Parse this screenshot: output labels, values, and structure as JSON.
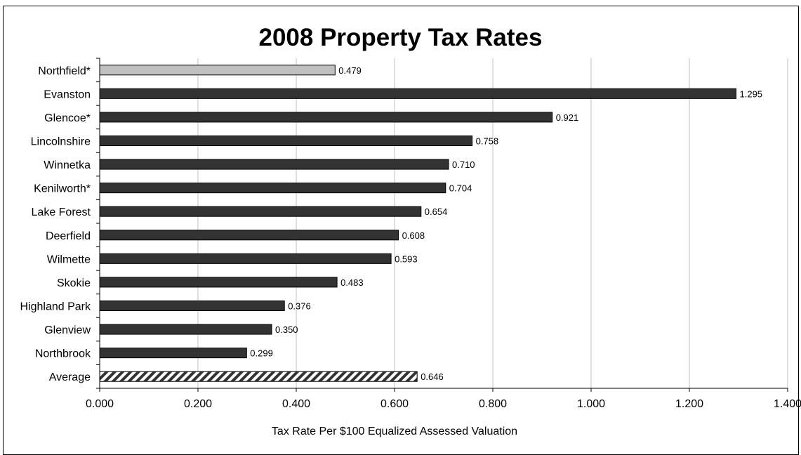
{
  "chart_data": {
    "type": "bar",
    "orientation": "horizontal",
    "title": "2008 Property Tax Rates",
    "xlabel": "Tax Rate Per $100 Equalized Assessed Valuation",
    "ylabel": "",
    "xlim": [
      0,
      1.4
    ],
    "x_ticks": [
      "0.000",
      "0.200",
      "0.400",
      "0.600",
      "0.800",
      "1.000",
      "1.200",
      "1.400"
    ],
    "grid": "vertical",
    "legend": "none",
    "categories": [
      "Northfield*",
      "Evanston",
      "Glencoe*",
      "Lincolnshire",
      "Winnetka",
      "Kenilworth*",
      "Lake Forest",
      "Deerfield",
      "Wilmette",
      "Skokie",
      "Highland Park",
      "Glenview",
      "Northbrook",
      "Average"
    ],
    "values": [
      0.479,
      1.295,
      0.921,
      0.758,
      0.71,
      0.704,
      0.654,
      0.608,
      0.593,
      0.483,
      0.376,
      0.35,
      0.299,
      0.646
    ],
    "value_labels": [
      "0.479",
      "1.295",
      "0.921",
      "0.758",
      "0.710",
      "0.704",
      "0.654",
      "0.608",
      "0.593",
      "0.483",
      "0.376",
      "0.350",
      "0.299",
      "0.646"
    ],
    "bar_styles": [
      "light",
      "dark",
      "dark",
      "dark",
      "dark",
      "dark",
      "dark",
      "dark",
      "dark",
      "dark",
      "dark",
      "dark",
      "dark",
      "hatched"
    ],
    "colors": {
      "dark": "#333333",
      "light": "#c0c0c0",
      "hatch": "#333333",
      "grid": "#c0c0c0"
    }
  }
}
